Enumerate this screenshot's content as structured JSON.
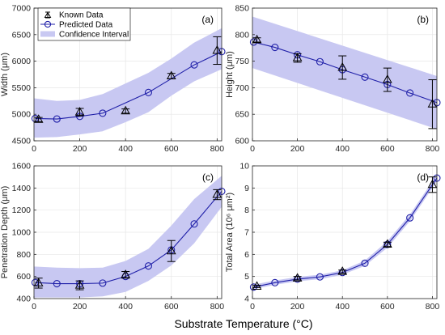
{
  "figure": {
    "xlabel": "Substrate Temperature (°C)"
  },
  "legend": {
    "known": "Known Data",
    "predicted": "Predicted Data",
    "ci": "Confidence Interval"
  },
  "colors": {
    "predicted": "#1f1fa8",
    "band": "#c8c8f2",
    "known": "#000000",
    "grid": "#e6e6e6"
  },
  "chart_data": [
    {
      "type": "line",
      "panel": "(a)",
      "ylabel": "Width (μm)",
      "xlim": [
        0,
        820
      ],
      "ylim": [
        4500,
        7000
      ],
      "xticks": [
        0,
        200,
        400,
        600,
        800
      ],
      "yticks": [
        4500,
        5000,
        5500,
        6000,
        6500,
        7000
      ],
      "grid": true,
      "legend_position": "top-left",
      "predicted": {
        "x": [
          5,
          100,
          200,
          300,
          500,
          700,
          820
        ],
        "y": [
          4920,
          4910,
          4960,
          5020,
          5410,
          5930,
          6180
        ]
      },
      "band_upper": {
        "x": [
          0,
          100,
          200,
          300,
          400,
          500,
          600,
          700,
          820
        ],
        "y": [
          5300,
          5250,
          5270,
          5380,
          5580,
          5780,
          6050,
          6350,
          6620
        ]
      },
      "band_lower": {
        "x": [
          0,
          100,
          200,
          300,
          400,
          500,
          600,
          700,
          820
        ],
        "y": [
          4560,
          4570,
          4620,
          4680,
          4850,
          5040,
          5350,
          5620,
          5850
        ]
      },
      "known": {
        "x": [
          20,
          200,
          400,
          600,
          800
        ],
        "y": [
          4900,
          5040,
          5060,
          5720,
          6200
        ],
        "err": [
          40,
          70,
          40,
          50,
          260
        ]
      }
    },
    {
      "type": "line",
      "panel": "(b)",
      "ylabel": "Height (μm)",
      "xlim": [
        0,
        820
      ],
      "ylim": [
        600,
        850
      ],
      "xticks": [
        0,
        200,
        400,
        600,
        800
      ],
      "yticks": [
        600,
        650,
        700,
        750,
        800,
        850
      ],
      "grid": true,
      "predicted": {
        "x": [
          5,
          100,
          200,
          300,
          400,
          500,
          600,
          700,
          820
        ],
        "y": [
          786,
          776,
          762,
          749,
          734,
          720,
          706,
          690,
          672
        ]
      },
      "band_upper": {
        "x": [
          0,
          820
        ],
        "y": [
          834,
          722
        ]
      },
      "band_lower": {
        "x": [
          0,
          820
        ],
        "y": [
          737,
          622
        ]
      },
      "known": {
        "x": [
          20,
          200,
          400,
          600,
          800
        ],
        "y": [
          790,
          756,
          738,
          715,
          669
        ],
        "err": [
          4,
          8,
          22,
          22,
          46
        ]
      }
    },
    {
      "type": "line",
      "panel": "(c)",
      "ylabel": "Penetration Depth (μm)",
      "xlim": [
        0,
        820
      ],
      "ylim": [
        400,
        1600
      ],
      "xticks": [
        0,
        200,
        400,
        600,
        800
      ],
      "yticks": [
        400,
        600,
        800,
        1000,
        1200,
        1400,
        1600
      ],
      "grid": true,
      "predicted": {
        "x": [
          5,
          100,
          200,
          300,
          400,
          500,
          600,
          700,
          820
        ],
        "y": [
          545,
          535,
          535,
          540,
          600,
          695,
          840,
          1075,
          1370
        ]
      },
      "band_upper": {
        "x": [
          0,
          100,
          200,
          300,
          400,
          500,
          600,
          700,
          820
        ],
        "y": [
          690,
          680,
          675,
          680,
          740,
          850,
          1060,
          1300,
          1510
        ]
      },
      "band_lower": {
        "x": [
          0,
          100,
          200,
          300,
          400,
          500,
          600,
          700,
          820
        ],
        "y": [
          410,
          410,
          410,
          420,
          460,
          560,
          700,
          900,
          1230
        ]
      },
      "known": {
        "x": [
          20,
          200,
          400,
          600,
          800
        ],
        "y": [
          540,
          520,
          615,
          830,
          1340
        ],
        "err": [
          45,
          40,
          30,
          95,
          45
        ]
      }
    },
    {
      "type": "line",
      "panel": "(d)",
      "ylabel": "Total Area (10⁶ μm²)",
      "xlim": [
        0,
        820
      ],
      "ylim": [
        4,
        10
      ],
      "xticks": [
        0,
        200,
        400,
        600,
        800
      ],
      "yticks": [
        4,
        5,
        6,
        7,
        8,
        9,
        10
      ],
      "grid": true,
      "predicted": {
        "x": [
          5,
          100,
          200,
          300,
          400,
          500,
          600,
          700,
          820
        ],
        "y": [
          4.52,
          4.72,
          4.88,
          4.98,
          5.18,
          5.6,
          6.45,
          7.65,
          9.45
        ]
      },
      "band_upper": {
        "x": [
          0,
          100,
          200,
          300,
          400,
          500,
          600,
          700,
          820
        ],
        "y": [
          4.62,
          4.82,
          4.98,
          5.08,
          5.28,
          5.72,
          6.6,
          7.8,
          9.6
        ]
      },
      "band_lower": {
        "x": [
          0,
          100,
          200,
          300,
          400,
          500,
          600,
          700,
          820
        ],
        "y": [
          4.42,
          4.62,
          4.78,
          4.88,
          5.08,
          5.48,
          6.3,
          7.5,
          9.3
        ]
      },
      "known": {
        "x": [
          20,
          200,
          400,
          600,
          800
        ],
        "y": [
          4.55,
          4.92,
          5.22,
          6.45,
          9.15
        ],
        "err": [
          0.05,
          0.08,
          0.07,
          0.1,
          0.35
        ]
      }
    }
  ]
}
